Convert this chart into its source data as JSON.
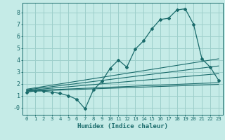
{
  "title": "",
  "xlabel": "Humidex (Indice chaleur)",
  "ylabel": "",
  "bg_color": "#c5ebe7",
  "grid_color": "#9dcfcb",
  "line_color": "#1a6b6b",
  "xlim": [
    -0.5,
    23.5
  ],
  "ylim": [
    -0.6,
    8.8
  ],
  "xticks": [
    0,
    1,
    2,
    3,
    4,
    5,
    6,
    7,
    8,
    9,
    10,
    11,
    12,
    13,
    14,
    15,
    16,
    17,
    18,
    19,
    20,
    21,
    22,
    23
  ],
  "yticks": [
    0,
    1,
    2,
    3,
    4,
    5,
    6,
    7,
    8
  ],
  "ytick_labels": [
    "-0",
    "1",
    "2",
    "3",
    "4",
    "5",
    "6",
    "7",
    "8"
  ],
  "main_x": [
    0,
    1,
    2,
    3,
    4,
    5,
    6,
    7,
    8,
    9,
    10,
    11,
    12,
    13,
    14,
    15,
    16,
    17,
    18,
    19,
    20,
    21,
    22,
    23
  ],
  "main_y": [
    1.3,
    1.4,
    1.4,
    1.3,
    1.2,
    1.0,
    0.7,
    -0.1,
    1.5,
    2.2,
    3.3,
    4.0,
    3.4,
    4.9,
    5.6,
    6.6,
    7.4,
    7.5,
    8.2,
    8.3,
    7.0,
    4.1,
    3.4,
    2.3
  ],
  "reg_lines": [
    {
      "x0": 0,
      "y0": 1.55,
      "x1": 23,
      "y1": 4.1
    },
    {
      "x0": 0,
      "y0": 1.5,
      "x1": 23,
      "y1": 3.5
    },
    {
      "x0": 0,
      "y0": 1.45,
      "x1": 23,
      "y1": 2.85
    },
    {
      "x0": 0,
      "y0": 1.42,
      "x1": 23,
      "y1": 2.1
    },
    {
      "x0": 0,
      "y0": 1.38,
      "x1": 23,
      "y1": 1.95
    }
  ]
}
